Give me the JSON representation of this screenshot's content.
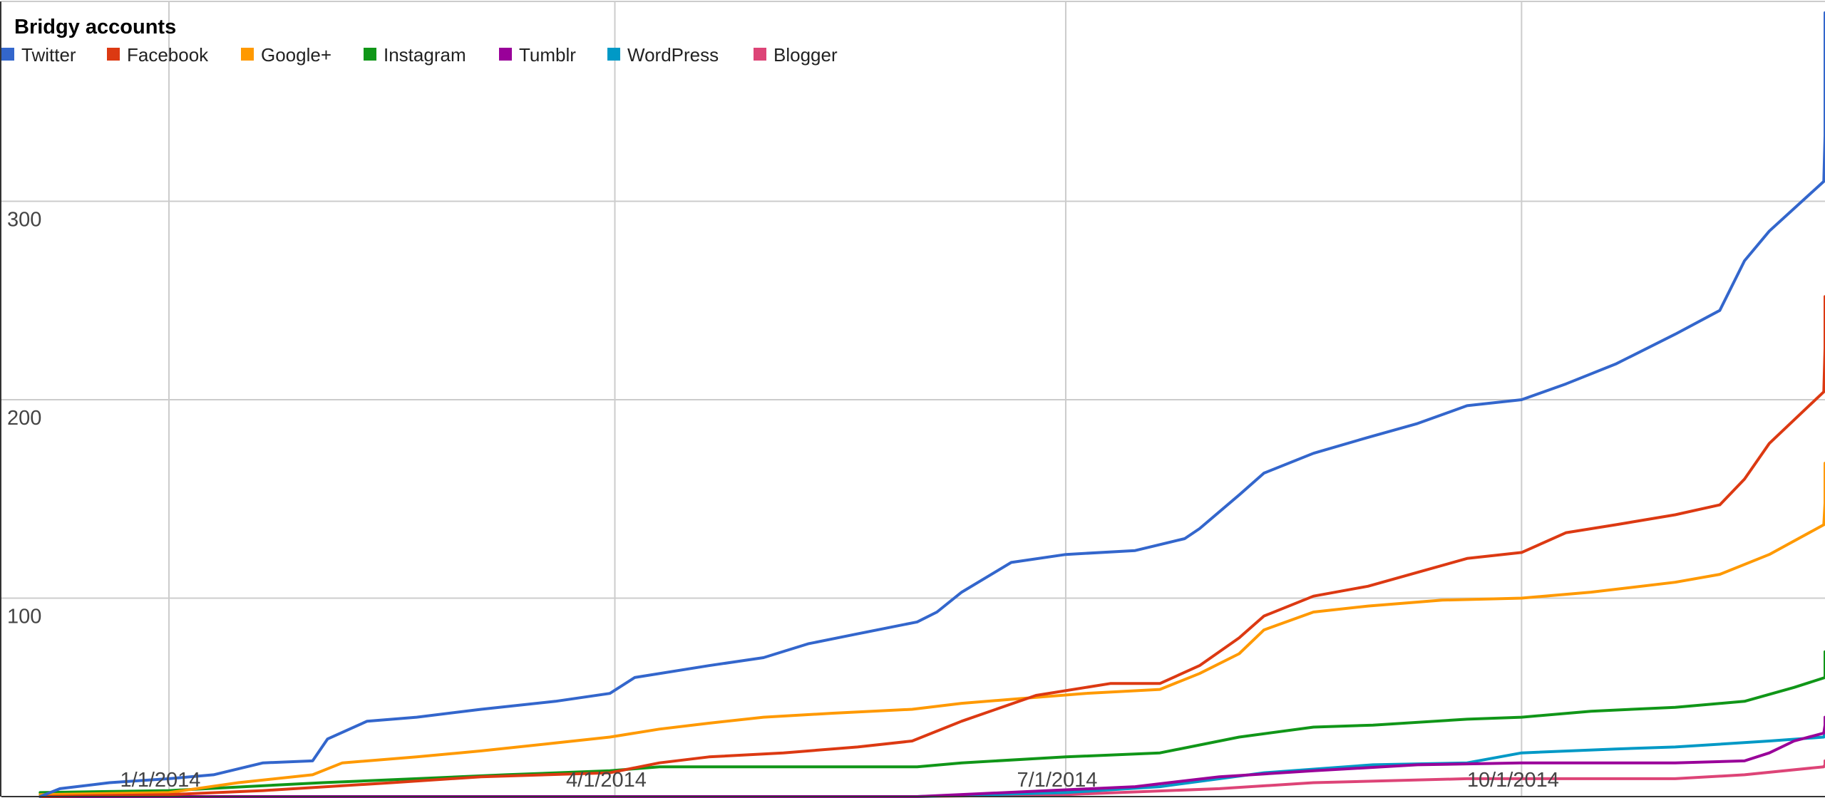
{
  "chart_data": {
    "type": "line",
    "title": "Bridgy accounts",
    "xlabel": "",
    "ylabel": "",
    "x_axis_type": "date",
    "xlim": [
      "2013-12-01",
      "2014-12-31"
    ],
    "ylim": [
      0,
      400
    ],
    "y_ticks": [
      100,
      200,
      300
    ],
    "y_tick_labels": [
      "100",
      "200",
      "300"
    ],
    "x_ticks": [
      "2014-01-01",
      "2014-04-01",
      "2014-07-01",
      "2014-10-01"
    ],
    "x_tick_labels": [
      "1/1/2014",
      "4/1/2014",
      "7/1/2014",
      "10/1/2014"
    ],
    "grid": true,
    "legend": "top-left",
    "series": [
      {
        "name": "Twitter",
        "color": "#3366cc",
        "points": [
          [
            "2013-12-06",
            0
          ],
          [
            "2013-12-10",
            4
          ],
          [
            "2013-12-20",
            7
          ],
          [
            "2014-01-01",
            9
          ],
          [
            "2014-01-10",
            11
          ],
          [
            "2014-01-20",
            17
          ],
          [
            "2014-01-30",
            18
          ],
          [
            "2014-02-02",
            29
          ],
          [
            "2014-02-10",
            38
          ],
          [
            "2014-02-20",
            40
          ],
          [
            "2014-03-05",
            44
          ],
          [
            "2014-03-20",
            48
          ],
          [
            "2014-03-31",
            52
          ],
          [
            "2014-04-05",
            60
          ],
          [
            "2014-04-20",
            66
          ],
          [
            "2014-05-01",
            70
          ],
          [
            "2014-05-10",
            77
          ],
          [
            "2014-05-20",
            82
          ],
          [
            "2014-06-01",
            88
          ],
          [
            "2014-06-05",
            93
          ],
          [
            "2014-06-10",
            103
          ],
          [
            "2014-06-20",
            118
          ],
          [
            "2014-07-01",
            122
          ],
          [
            "2014-07-15",
            124
          ],
          [
            "2014-07-25",
            130
          ],
          [
            "2014-07-28",
            135
          ],
          [
            "2014-08-05",
            152
          ],
          [
            "2014-08-10",
            163
          ],
          [
            "2014-08-20",
            173
          ],
          [
            "2014-08-31",
            181
          ],
          [
            "2014-09-10",
            188
          ],
          [
            "2014-09-20",
            197
          ],
          [
            "2014-10-01",
            200
          ],
          [
            "2014-10-10",
            208
          ],
          [
            "2014-10-20",
            218
          ],
          [
            "2014-11-01",
            233
          ],
          [
            "2014-11-10",
            245
          ],
          [
            "2014-11-15",
            270
          ],
          [
            "2014-11-20",
            285
          ],
          [
            "2014-12-01",
            310
          ],
          [
            "2014-12-05",
            333
          ],
          [
            "2014-12-10",
            355
          ],
          [
            "2014-12-17",
            372
          ],
          [
            "2014-12-25",
            388
          ],
          [
            "2014-12-31",
            395
          ]
        ]
      },
      {
        "name": "Facebook",
        "color": "#dc3912",
        "points": [
          [
            "2013-12-06",
            0
          ],
          [
            "2014-01-01",
            1
          ],
          [
            "2014-01-20",
            3
          ],
          [
            "2014-02-15",
            7
          ],
          [
            "2014-03-05",
            10
          ],
          [
            "2014-03-31",
            12
          ],
          [
            "2014-04-10",
            17
          ],
          [
            "2014-04-20",
            20
          ],
          [
            "2014-05-05",
            22
          ],
          [
            "2014-05-20",
            25
          ],
          [
            "2014-05-31",
            28
          ],
          [
            "2014-06-10",
            38
          ],
          [
            "2014-06-25",
            51
          ],
          [
            "2014-07-10",
            57
          ],
          [
            "2014-07-20",
            57
          ],
          [
            "2014-07-28",
            66
          ],
          [
            "2014-08-05",
            80
          ],
          [
            "2014-08-10",
            91
          ],
          [
            "2014-08-20",
            101
          ],
          [
            "2014-08-31",
            106
          ],
          [
            "2014-09-10",
            113
          ],
          [
            "2014-09-20",
            120
          ],
          [
            "2014-10-01",
            123
          ],
          [
            "2014-10-10",
            133
          ],
          [
            "2014-10-20",
            137
          ],
          [
            "2014-11-01",
            142
          ],
          [
            "2014-11-10",
            147
          ],
          [
            "2014-11-15",
            160
          ],
          [
            "2014-11-20",
            178
          ],
          [
            "2014-12-01",
            204
          ],
          [
            "2014-12-10",
            226
          ],
          [
            "2014-12-20",
            237
          ],
          [
            "2014-12-31",
            252
          ]
        ]
      },
      {
        "name": "Google+",
        "color": "#ff9900",
        "points": [
          [
            "2013-12-06",
            1
          ],
          [
            "2014-01-01",
            2
          ],
          [
            "2014-01-15",
            7
          ],
          [
            "2014-01-30",
            11
          ],
          [
            "2014-02-05",
            17
          ],
          [
            "2014-02-20",
            20
          ],
          [
            "2014-03-05",
            23
          ],
          [
            "2014-03-20",
            27
          ],
          [
            "2014-03-31",
            30
          ],
          [
            "2014-04-10",
            34
          ],
          [
            "2014-04-20",
            37
          ],
          [
            "2014-05-01",
            40
          ],
          [
            "2014-05-15",
            42
          ],
          [
            "2014-05-31",
            44
          ],
          [
            "2014-06-10",
            47
          ],
          [
            "2014-06-20",
            49
          ],
          [
            "2014-07-05",
            52
          ],
          [
            "2014-07-20",
            54
          ],
          [
            "2014-07-28",
            62
          ],
          [
            "2014-08-05",
            72
          ],
          [
            "2014-08-10",
            84
          ],
          [
            "2014-08-20",
            93
          ],
          [
            "2014-08-31",
            96
          ],
          [
            "2014-09-15",
            99
          ],
          [
            "2014-10-01",
            100
          ],
          [
            "2014-10-15",
            103
          ],
          [
            "2014-11-01",
            108
          ],
          [
            "2014-11-10",
            112
          ],
          [
            "2014-11-20",
            122
          ],
          [
            "2014-12-01",
            137
          ],
          [
            "2014-12-10",
            148
          ],
          [
            "2014-12-20",
            157
          ],
          [
            "2014-12-31",
            168
          ]
        ]
      },
      {
        "name": "Instagram",
        "color": "#109618",
        "points": [
          [
            "2013-12-06",
            2
          ],
          [
            "2014-01-01",
            3
          ],
          [
            "2014-02-01",
            7
          ],
          [
            "2014-02-20",
            9
          ],
          [
            "2014-03-10",
            11
          ],
          [
            "2014-03-31",
            13
          ],
          [
            "2014-04-10",
            15
          ],
          [
            "2014-05-01",
            15
          ],
          [
            "2014-05-20",
            15
          ],
          [
            "2014-06-01",
            15
          ],
          [
            "2014-06-10",
            17
          ],
          [
            "2014-07-01",
            20
          ],
          [
            "2014-07-20",
            22
          ],
          [
            "2014-08-05",
            30
          ],
          [
            "2014-08-20",
            35
          ],
          [
            "2014-09-01",
            36
          ],
          [
            "2014-09-20",
            39
          ],
          [
            "2014-10-01",
            40
          ],
          [
            "2014-10-15",
            43
          ],
          [
            "2014-11-01",
            45
          ],
          [
            "2014-11-15",
            48
          ],
          [
            "2014-11-25",
            55
          ],
          [
            "2014-12-05",
            60
          ],
          [
            "2014-12-20",
            66
          ],
          [
            "2014-12-31",
            73
          ]
        ]
      },
      {
        "name": "Tumblr",
        "color": "#990099",
        "points": [
          [
            "2013-12-06",
            0
          ],
          [
            "2014-06-01",
            0
          ],
          [
            "2014-07-15",
            5
          ],
          [
            "2014-08-01",
            10
          ],
          [
            "2014-08-20",
            13
          ],
          [
            "2014-09-10",
            16
          ],
          [
            "2014-10-01",
            17
          ],
          [
            "2014-11-01",
            17
          ],
          [
            "2014-11-15",
            18
          ],
          [
            "2014-11-20",
            22
          ],
          [
            "2014-11-25",
            28
          ],
          [
            "2014-12-01",
            32
          ],
          [
            "2014-12-15",
            36
          ],
          [
            "2014-12-31",
            40
          ]
        ]
      },
      {
        "name": "WordPress",
        "color": "#0099c6",
        "points": [
          [
            "2013-12-06",
            0
          ],
          [
            "2014-06-01",
            0
          ],
          [
            "2014-07-01",
            2
          ],
          [
            "2014-07-20",
            5
          ],
          [
            "2014-08-10",
            12
          ],
          [
            "2014-09-01",
            16
          ],
          [
            "2014-09-20",
            17
          ],
          [
            "2014-10-01",
            22
          ],
          [
            "2014-10-20",
            24
          ],
          [
            "2014-11-01",
            25
          ],
          [
            "2014-11-20",
            28
          ],
          [
            "2014-12-01",
            30
          ],
          [
            "2014-12-15",
            32
          ],
          [
            "2014-12-31",
            34
          ]
        ]
      },
      {
        "name": "Blogger",
        "color": "#dd4477",
        "points": [
          [
            "2013-12-06",
            0
          ],
          [
            "2014-06-01",
            0
          ],
          [
            "2014-07-01",
            1
          ],
          [
            "2014-08-01",
            4
          ],
          [
            "2014-08-20",
            7
          ],
          [
            "2014-09-20",
            9
          ],
          [
            "2014-11-01",
            9
          ],
          [
            "2014-11-15",
            11
          ],
          [
            "2014-12-01",
            15
          ],
          [
            "2014-12-20",
            16
          ],
          [
            "2014-12-31",
            18
          ]
        ]
      }
    ]
  }
}
